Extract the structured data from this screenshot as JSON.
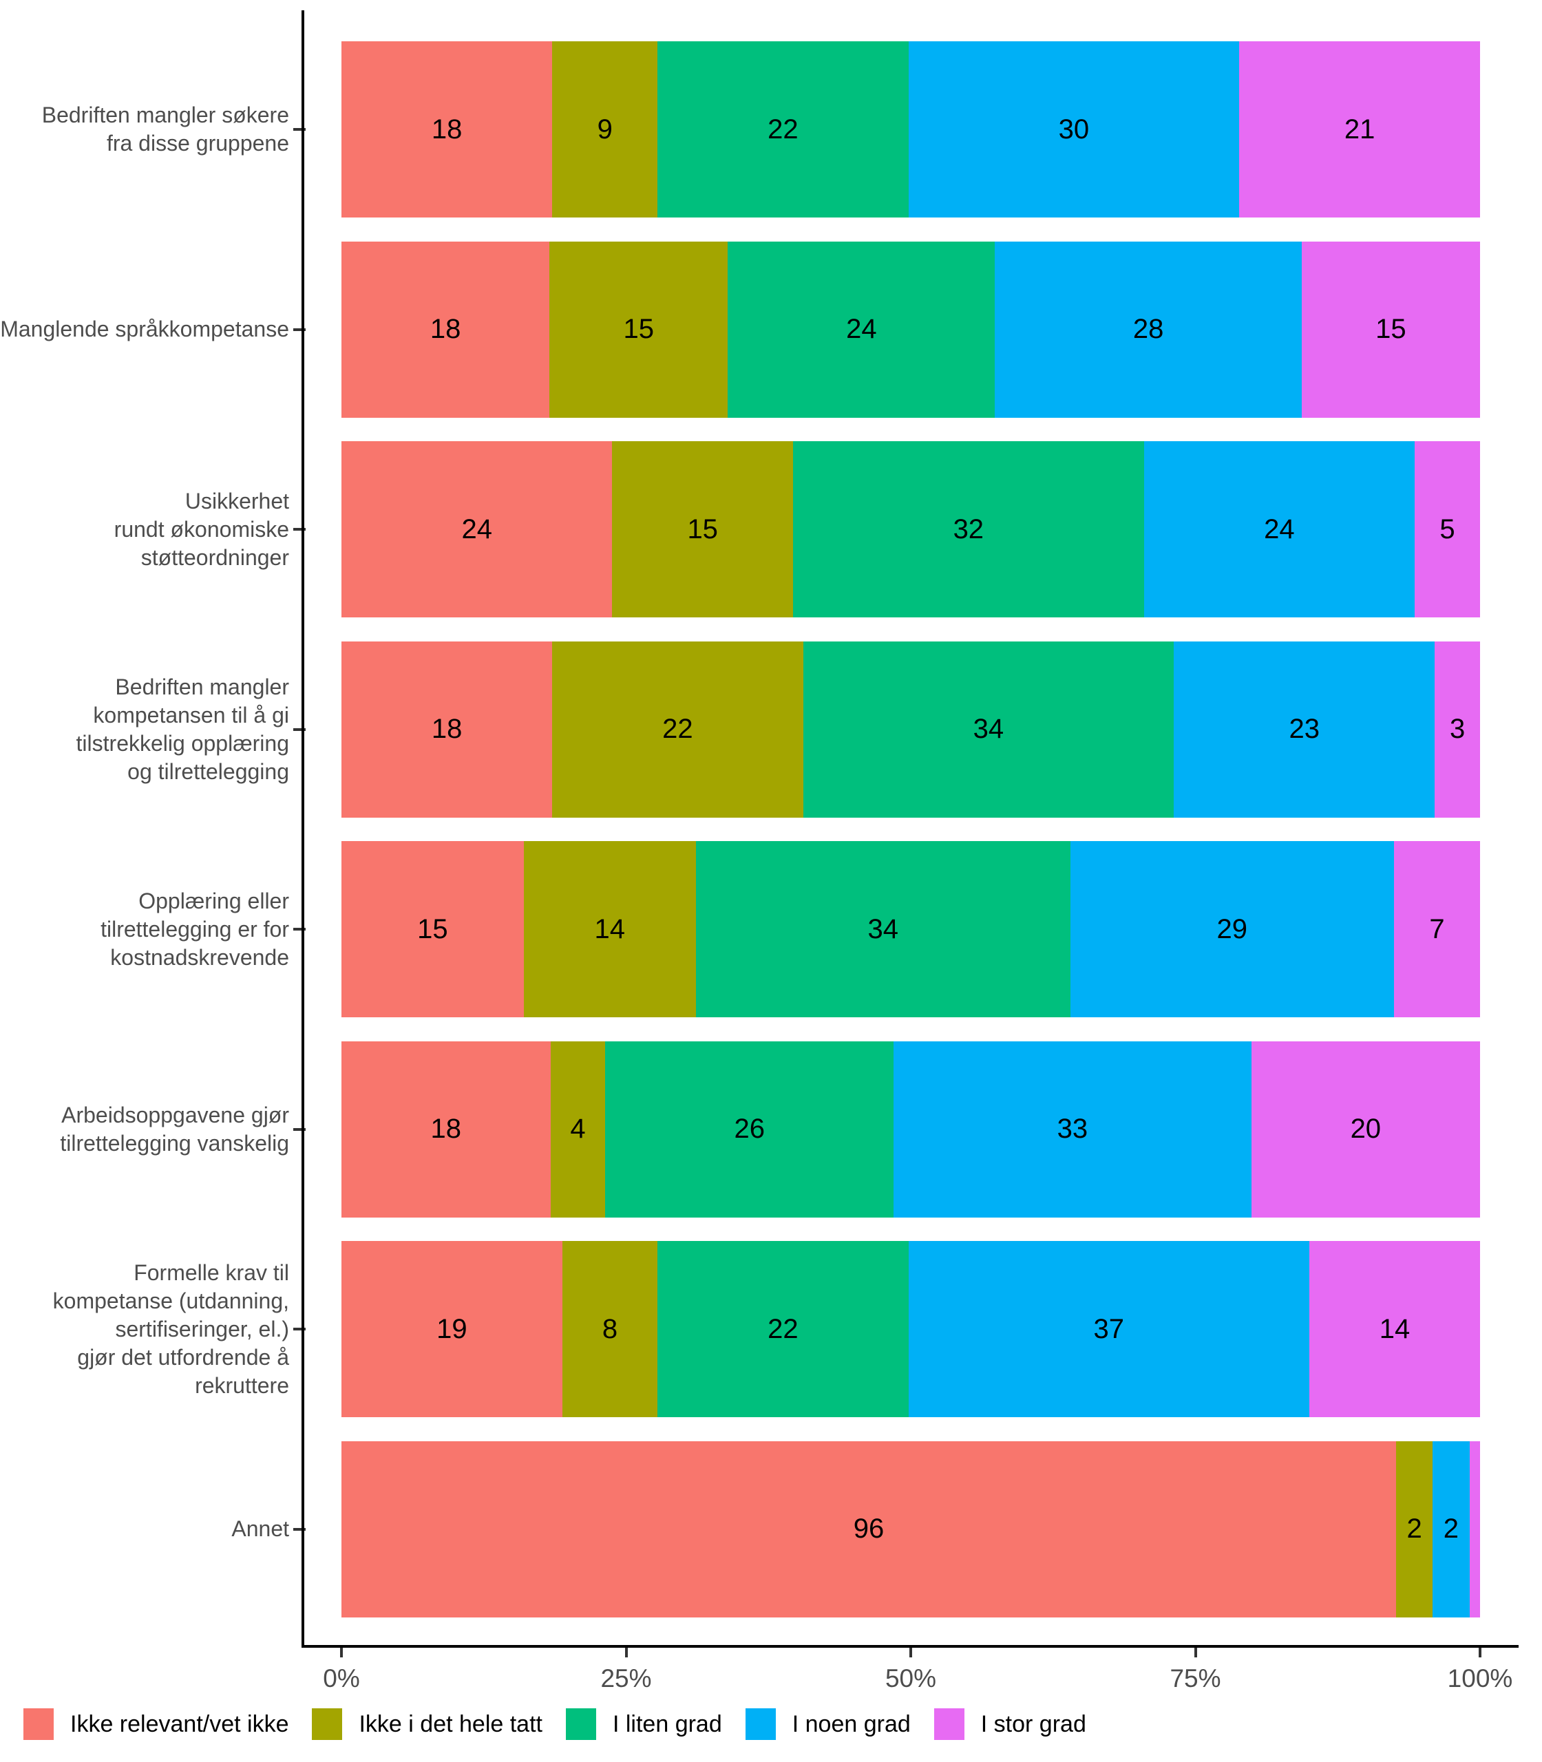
{
  "figure": {
    "background_color": "#FFFFFF",
    "axis_line_color": "#000000",
    "axis_text_color": "#4D4D4D",
    "value_label_color": "#000000",
    "value_label_min_show": 2
  },
  "chart_data": {
    "type": "bar",
    "orientation": "horizontal",
    "stacking": "percent",
    "title": "",
    "xlabel": "",
    "ylabel": "",
    "grid": false,
    "x_axis": {
      "ticks": [
        "0%",
        "25%",
        "50%",
        "75%",
        "100%"
      ],
      "tick_positions": [
        0,
        25,
        50,
        75,
        100
      ],
      "range": [
        0,
        100
      ]
    },
    "categories": [
      "Bedriften mangler søkere\nfra disse gruppene",
      "Manglende språkkompetanse",
      "Usikkerhet\nrundt økonomiske\nstøtteordninger",
      "Bedriften mangler\nkompetansen til å gi\ntilstrekkelig opplæring\nog tilrettelegging",
      "Opplæring eller\ntilrettelegging er for\nkostnadskrevende",
      "Arbeidsoppgavene gjør\ntilrettelegging vanskelig",
      "Formelle krav til\nkompetanse (utdanning,\nsertifiseringer, el.)\ngjør det utfordrende å\nrekruttere",
      "Annet"
    ],
    "series": [
      {
        "name": "Ikke relevant/vet ikke",
        "color": "#F8766D",
        "values": [
          18,
          18,
          24,
          18,
          15,
          18,
          19,
          96
        ]
      },
      {
        "name": "Ikke i det hele tatt",
        "color": "#A3A500",
        "values": [
          9,
          15,
          15,
          22,
          14,
          4,
          8,
          2
        ]
      },
      {
        "name": "I liten grad",
        "color": "#00BF7D",
        "values": [
          22,
          24,
          32,
          34,
          34,
          26,
          22,
          0
        ]
      },
      {
        "name": "I noen grad",
        "color": "#00B0F6",
        "values": [
          30,
          28,
          24,
          23,
          29,
          33,
          37,
          2
        ]
      },
      {
        "name": "I stor grad",
        "color": "#E76BF3",
        "values": [
          21,
          15,
          5,
          3,
          7,
          20,
          14,
          1
        ]
      }
    ],
    "legend": {
      "position": "bottom-left",
      "items": [
        "Ikke relevant/vet ikke",
        "Ikke i det hele tatt",
        "I liten grad",
        "I noen grad",
        "I stor grad"
      ]
    }
  }
}
